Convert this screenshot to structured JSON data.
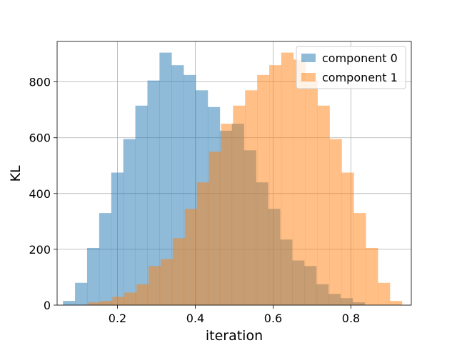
{
  "chart_data": {
    "type": "bar",
    "title": "",
    "xlabel": "iteration",
    "ylabel": "KL",
    "xlim": [
      0.045,
      0.955
    ],
    "ylim": [
      0,
      945
    ],
    "xticks": [
      0.2,
      0.4,
      0.6,
      0.8
    ],
    "xtick_labels": [
      "0.2",
      "0.4",
      "0.6",
      "0.8"
    ],
    "yticks": [
      0,
      200,
      400,
      600,
      800
    ],
    "ytick_labels": [
      "0",
      "200",
      "400",
      "600",
      "800"
    ],
    "grid": true,
    "legend_position": "top-right",
    "alpha": 0.5,
    "series": [
      {
        "name": "component 0",
        "color": "#1f77b4",
        "bins": [
          {
            "x0": 0.06,
            "x1": 0.091,
            "count": 15
          },
          {
            "x0": 0.091,
            "x1": 0.122,
            "count": 80
          },
          {
            "x0": 0.122,
            "x1": 0.153,
            "count": 205
          },
          {
            "x0": 0.153,
            "x1": 0.184,
            "count": 330
          },
          {
            "x0": 0.184,
            "x1": 0.215,
            "count": 475
          },
          {
            "x0": 0.215,
            "x1": 0.246,
            "count": 595
          },
          {
            "x0": 0.246,
            "x1": 0.277,
            "count": 715
          },
          {
            "x0": 0.277,
            "x1": 0.308,
            "count": 805
          },
          {
            "x0": 0.308,
            "x1": 0.339,
            "count": 905
          },
          {
            "x0": 0.339,
            "x1": 0.37,
            "count": 860
          },
          {
            "x0": 0.37,
            "x1": 0.401,
            "count": 825
          },
          {
            "x0": 0.401,
            "x1": 0.432,
            "count": 770
          },
          {
            "x0": 0.432,
            "x1": 0.463,
            "count": 710
          },
          {
            "x0": 0.463,
            "x1": 0.494,
            "count": 625
          },
          {
            "x0": 0.494,
            "x1": 0.525,
            "count": 650
          },
          {
            "x0": 0.525,
            "x1": 0.556,
            "count": 555
          },
          {
            "x0": 0.556,
            "x1": 0.587,
            "count": 440
          },
          {
            "x0": 0.587,
            "x1": 0.618,
            "count": 345
          },
          {
            "x0": 0.618,
            "x1": 0.649,
            "count": 235
          },
          {
            "x0": 0.649,
            "x1": 0.68,
            "count": 160
          },
          {
            "x0": 0.68,
            "x1": 0.711,
            "count": 140
          },
          {
            "x0": 0.711,
            "x1": 0.742,
            "count": 75
          },
          {
            "x0": 0.742,
            "x1": 0.773,
            "count": 40
          },
          {
            "x0": 0.773,
            "x1": 0.804,
            "count": 25
          },
          {
            "x0": 0.804,
            "x1": 0.835,
            "count": 10
          }
        ]
      },
      {
        "name": "component 1",
        "color": "#ff7f0e",
        "bins": [
          {
            "x0": 0.125,
            "x1": 0.156,
            "count": 10
          },
          {
            "x0": 0.156,
            "x1": 0.187,
            "count": 15
          },
          {
            "x0": 0.187,
            "x1": 0.218,
            "count": 30
          },
          {
            "x0": 0.218,
            "x1": 0.249,
            "count": 45
          },
          {
            "x0": 0.249,
            "x1": 0.28,
            "count": 75
          },
          {
            "x0": 0.28,
            "x1": 0.311,
            "count": 140
          },
          {
            "x0": 0.311,
            "x1": 0.342,
            "count": 165
          },
          {
            "x0": 0.342,
            "x1": 0.373,
            "count": 240
          },
          {
            "x0": 0.373,
            "x1": 0.404,
            "count": 345
          },
          {
            "x0": 0.404,
            "x1": 0.435,
            "count": 440
          },
          {
            "x0": 0.435,
            "x1": 0.466,
            "count": 550
          },
          {
            "x0": 0.466,
            "x1": 0.497,
            "count": 650
          },
          {
            "x0": 0.497,
            "x1": 0.528,
            "count": 715
          },
          {
            "x0": 0.528,
            "x1": 0.559,
            "count": 770
          },
          {
            "x0": 0.559,
            "x1": 0.59,
            "count": 825
          },
          {
            "x0": 0.59,
            "x1": 0.621,
            "count": 860
          },
          {
            "x0": 0.621,
            "x1": 0.652,
            "count": 905
          },
          {
            "x0": 0.652,
            "x1": 0.683,
            "count": 880
          },
          {
            "x0": 0.683,
            "x1": 0.714,
            "count": 805
          },
          {
            "x0": 0.714,
            "x1": 0.745,
            "count": 715
          },
          {
            "x0": 0.745,
            "x1": 0.776,
            "count": 595
          },
          {
            "x0": 0.776,
            "x1": 0.807,
            "count": 475
          },
          {
            "x0": 0.807,
            "x1": 0.838,
            "count": 330
          },
          {
            "x0": 0.838,
            "x1": 0.869,
            "count": 205
          },
          {
            "x0": 0.869,
            "x1": 0.9,
            "count": 80
          },
          {
            "x0": 0.9,
            "x1": 0.931,
            "count": 15
          }
        ]
      }
    ]
  }
}
